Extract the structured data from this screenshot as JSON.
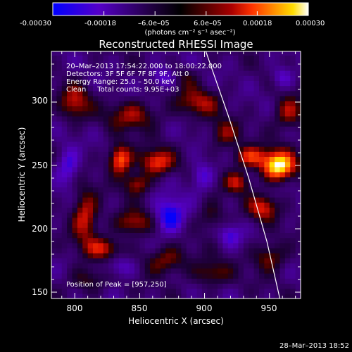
{
  "chart_data": {
    "type": "heatmap",
    "title": "Reconstructed RHESSI Image",
    "xlabel": "Heliocentric X (arcsec)",
    "ylabel": "Heliocentric Y (arcsec)",
    "xlim": [
      782,
      974
    ],
    "ylim": [
      145,
      340
    ],
    "x_ticks": [
      800,
      850,
      900,
      950
    ],
    "y_ticks": [
      150,
      200,
      250,
      300
    ],
    "colorbar": {
      "range": [
        -0.0003,
        0.0003
      ],
      "ticks": [
        -0.0003,
        -0.00018,
        -6e-05,
        6e-05,
        0.00018,
        0.0003
      ],
      "tick_labels": [
        "-0.00030",
        "-0.00018",
        "–6.0e–05",
        "6.0e–05",
        "0.00018",
        "0.00030"
      ],
      "units_label": "(photons cm⁻² s⁻¹ asec⁻²)",
      "colors": [
        "#0000ff",
        "#5500c8",
        "#220044",
        "#000000",
        "#550000",
        "#aa0000",
        "#ff3300",
        "#ff8800",
        "#ffdd00",
        "#ffffff"
      ]
    },
    "annotations": [
      "20–Mar–2013 17:54:22.000 to 18:00:22.000",
      "Detectors: 3F 5F 6F 7F 8F 9F, Att 0",
      "Energy Range: 25.0 – 50.0 keV",
      "Clean     Total counts: 9.95E+03",
      "Position of Peak = [957,250]"
    ],
    "peak": {
      "x": 957,
      "y": 250,
      "value": 0.0003
    },
    "sources": [
      {
        "x": 957,
        "y": 250,
        "sx": 9,
        "sy": 8,
        "amp": 1.0
      },
      {
        "x": 935,
        "y": 257,
        "sx": 9,
        "sy": 6,
        "amp": 0.55
      },
      {
        "x": 925,
        "y": 237,
        "sx": 7,
        "sy": 6,
        "amp": 0.45
      },
      {
        "x": 945,
        "y": 217,
        "sx": 8,
        "sy": 7,
        "amp": 0.5
      },
      {
        "x": 965,
        "y": 292,
        "sx": 8,
        "sy": 9,
        "amp": 0.45
      },
      {
        "x": 950,
        "y": 178,
        "sx": 9,
        "sy": 8,
        "amp": 0.4
      },
      {
        "x": 835,
        "y": 255,
        "sx": 6,
        "sy": 8,
        "amp": 0.75
      },
      {
        "x": 863,
        "y": 253,
        "sx": 9,
        "sy": 7,
        "amp": 0.6
      },
      {
        "x": 848,
        "y": 236,
        "sx": 7,
        "sy": 6,
        "amp": 0.45
      },
      {
        "x": 808,
        "y": 210,
        "sx": 7,
        "sy": 14,
        "amp": 0.55
      },
      {
        "x": 822,
        "y": 185,
        "sx": 10,
        "sy": 6,
        "amp": 0.45
      },
      {
        "x": 845,
        "y": 205,
        "sx": 10,
        "sy": 7,
        "amp": 0.45
      },
      {
        "x": 845,
        "y": 290,
        "sx": 14,
        "sy": 8,
        "amp": 0.4
      },
      {
        "x": 800,
        "y": 300,
        "sx": 8,
        "sy": 10,
        "amp": 0.45
      },
      {
        "x": 895,
        "y": 300,
        "sx": 12,
        "sy": 8,
        "amp": 0.4
      },
      {
        "x": 915,
        "y": 275,
        "sx": 8,
        "sy": 8,
        "amp": 0.35
      },
      {
        "x": 870,
        "y": 175,
        "sx": 12,
        "sy": 8,
        "amp": 0.4
      },
      {
        "x": 905,
        "y": 165,
        "sx": 10,
        "sy": 7,
        "amp": 0.35
      },
      {
        "x": 810,
        "y": 160,
        "sx": 10,
        "sy": 7,
        "amp": 0.3
      },
      {
        "x": 905,
        "y": 210,
        "sx": 7,
        "sy": 8,
        "amp": 0.3
      },
      {
        "x": 880,
        "y": 320,
        "sx": 10,
        "sy": 6,
        "amp": 0.3
      },
      {
        "x": 873,
        "y": 210,
        "sx": 8,
        "sy": 10,
        "amp": -0.55
      },
      {
        "x": 870,
        "y": 320,
        "sx": 8,
        "sy": 6,
        "amp": -0.5
      },
      {
        "x": 795,
        "y": 250,
        "sx": 6,
        "sy": 10,
        "amp": -0.4
      },
      {
        "x": 898,
        "y": 242,
        "sx": 6,
        "sy": 8,
        "amp": -0.35
      },
      {
        "x": 835,
        "y": 170,
        "sx": 8,
        "sy": 6,
        "amp": -0.3
      },
      {
        "x": 920,
        "y": 195,
        "sx": 6,
        "sy": 6,
        "amp": -0.3
      },
      {
        "x": 960,
        "y": 320,
        "sx": 6,
        "sy": 6,
        "amp": -0.3
      }
    ],
    "limb": {
      "x": [
        901,
        918,
        934,
        948,
        958
      ],
      "y": [
        340,
        290,
        240,
        190,
        145
      ]
    }
  },
  "timestamp": "28–Mar–2013 18:52"
}
